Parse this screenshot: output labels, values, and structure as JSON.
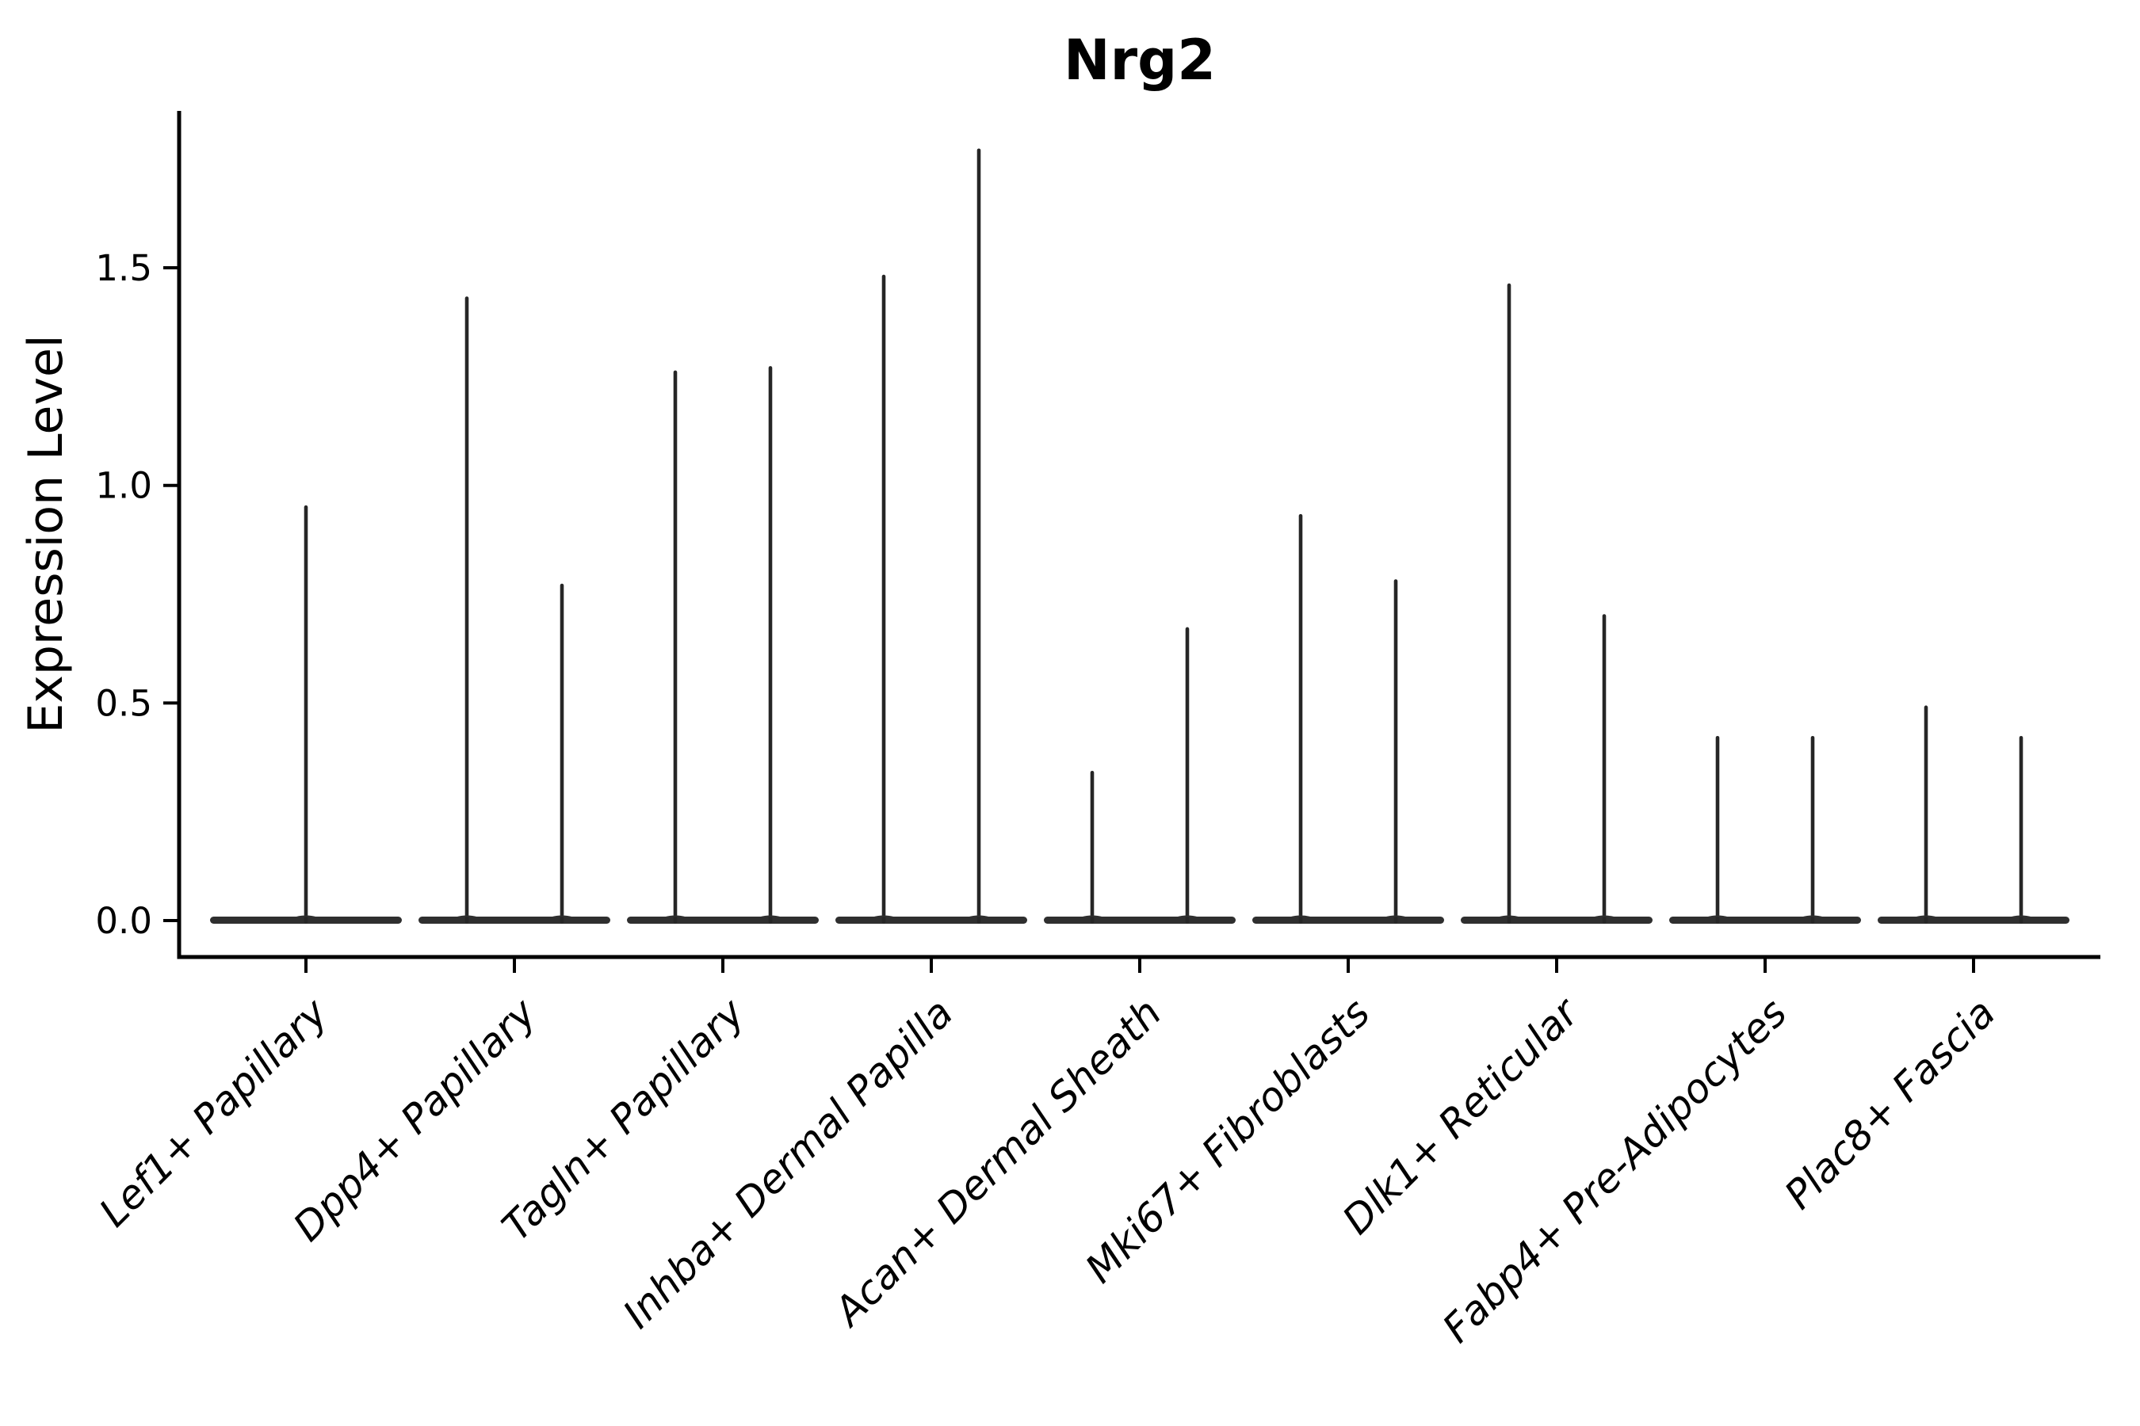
{
  "title": "Nrg2",
  "ylabel": "Expression Level",
  "colors": {
    "violin": "#2f2f2f",
    "spike": "#262626",
    "axis": "#000000",
    "background": "#ffffff",
    "text": "#000000"
  },
  "chart_data": {
    "type": "violin",
    "title": "Nrg2",
    "xlabel": "",
    "ylabel": "Expression Level",
    "grid": false,
    "legend": false,
    "ylim": [
      -0.08,
      1.86
    ],
    "yticks": [
      {
        "value": 0.0,
        "label": "0.0"
      },
      {
        "value": 0.5,
        "label": "0.5"
      },
      {
        "value": 1.0,
        "label": "1.0"
      },
      {
        "value": 1.5,
        "label": "1.5"
      }
    ],
    "categories": [
      "Lef1+ Papillary",
      "Dpp4+ Papillary",
      "Tagln+ Papillary",
      "Inhba+ Dermal Papilla",
      "Acan+ Dermal Sheath",
      "Mki67+ Fibroblasts",
      "Dlk1+ Reticular",
      "Fabp4+ Pre-Adipocytes",
      "Plac8+ Fascia"
    ],
    "series": [
      {
        "category": "Lef1+ Papillary",
        "spike_maxima": [
          0.95
        ]
      },
      {
        "category": "Dpp4+ Papillary",
        "spike_maxima": [
          1.43,
          0.77
        ]
      },
      {
        "category": "Tagln+ Papillary",
        "spike_maxima": [
          1.26,
          1.27
        ]
      },
      {
        "category": "Inhba+ Dermal Papilla",
        "spike_maxima": [
          1.48,
          1.77
        ]
      },
      {
        "category": "Acan+ Dermal Sheath",
        "spike_maxima": [
          0.34,
          0.67
        ]
      },
      {
        "category": "Mki67+ Fibroblasts",
        "spike_maxima": [
          0.93,
          0.78
        ]
      },
      {
        "category": "Dlk1+ Reticular",
        "spike_maxima": [
          1.46,
          0.7
        ]
      },
      {
        "category": "Fabp4+ Pre-Adipocytes",
        "spike_maxima": [
          0.42,
          0.42
        ]
      },
      {
        "category": "Plac8+ Fascia",
        "spike_maxima": [
          0.49,
          0.42
        ]
      }
    ],
    "violin_description": "Each cell type shows a violin collapsed to a flat bar at expression 0 with one or two thin spikes reaching the listed maxima"
  }
}
